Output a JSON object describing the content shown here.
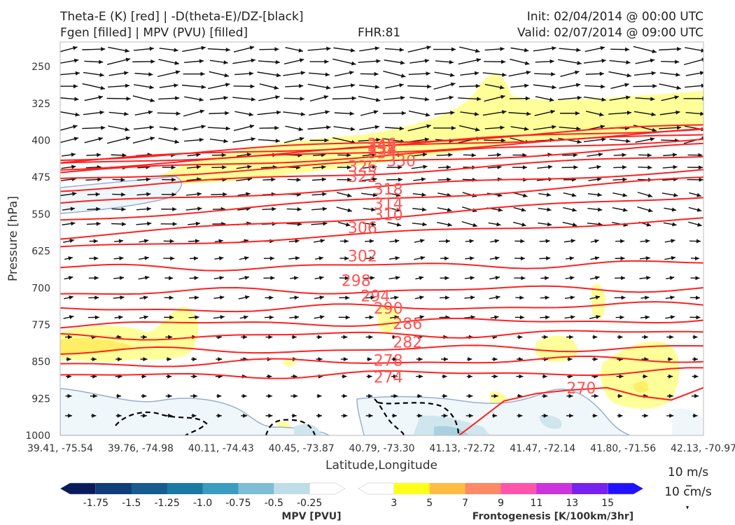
{
  "header": {
    "title_left_1": "Theta-E (K) [red] | -D(theta-E)/DZ-[black]",
    "title_left_2": "Fgen [filled] | MPV (PVU) [filled]",
    "fhr": "FHR:81",
    "init": "Init: 02/04/2014 @ 00:00 UTC",
    "valid": "Valid: 02/07/2014 @ 09:00 UTC"
  },
  "chart_data": {
    "type": "cross-section",
    "xlabel": "Latitude,Longitude",
    "ylabel": "Pressure [hPa]",
    "ylim": [
      1000,
      200
    ],
    "y_ticks": [
      "250",
      "325",
      "400",
      "475",
      "550",
      "625",
      "700",
      "775",
      "850",
      "925",
      "1000"
    ],
    "x_ticks": [
      "39.41, -75.54",
      "39.76, -74.98",
      "40.11, -74.43",
      "40.45, -73.87",
      "40.79, -73.30",
      "41.13, -72.72",
      "41.47, -72.14",
      "41.80, -71.56",
      "42.13, -70.97"
    ],
    "theta_e_contours": {
      "color": "#ff2020",
      "levels": [
        270,
        274,
        278,
        282,
        286,
        290,
        294,
        298,
        302,
        306,
        310,
        314,
        318,
        322,
        326,
        330,
        334,
        338,
        342,
        346
      ],
      "labels": [
        {
          "text": "270",
          "x": 0.81,
          "p": 903
        },
        {
          "text": "274",
          "x": 0.51,
          "p": 881
        },
        {
          "text": "278",
          "x": 0.51,
          "p": 847
        },
        {
          "text": "282",
          "x": 0.54,
          "p": 810
        },
        {
          "text": "286",
          "x": 0.54,
          "p": 772
        },
        {
          "text": "290",
          "x": 0.51,
          "p": 741
        },
        {
          "text": "294",
          "x": 0.49,
          "p": 716
        },
        {
          "text": "298",
          "x": 0.46,
          "p": 685
        },
        {
          "text": "302",
          "x": 0.47,
          "p": 635
        },
        {
          "text": "306",
          "x": 0.47,
          "p": 577
        },
        {
          "text": "310",
          "x": 0.51,
          "p": 551
        },
        {
          "text": "314",
          "x": 0.51,
          "p": 528
        },
        {
          "text": "318",
          "x": 0.51,
          "p": 499
        },
        {
          "text": "322",
          "x": 0.47,
          "p": 473
        },
        {
          "text": "326",
          "x": 0.47,
          "p": 453
        },
        {
          "text": "330",
          "x": 0.53,
          "p": 441
        },
        {
          "text": "334",
          "x": 0.5,
          "p": 425
        },
        {
          "text": "338",
          "x": 0.5,
          "p": 417
        },
        {
          "text": "342",
          "x": 0.5,
          "p": 411
        },
        {
          "text": "346",
          "x": 0.5,
          "p": 407
        }
      ]
    },
    "mpv_colorbar": {
      "label": "MPV [PVU]",
      "tick_labels": [
        "-1.75",
        "-1.5",
        "-1.25",
        "-1.0",
        "-0.75",
        "-0.5",
        "-0.25"
      ],
      "colors": [
        "#0a1a5c",
        "#0f3d7a",
        "#165c8f",
        "#1a7aa3",
        "#3a9cbf",
        "#7dbdd6",
        "#bfdde8",
        "#ffffff"
      ]
    },
    "fgen_colorbar": {
      "label": "Frontogenesis [K/100km/3hr]",
      "tick_labels": [
        "3",
        "5",
        "7",
        "9",
        "11",
        "13",
        "15"
      ],
      "colors": [
        "#ffffff",
        "#ffff1a",
        "#ffbb44",
        "#ff8866",
        "#ff55aa",
        "#cc33dd",
        "#7722ee",
        "#2211ff"
      ]
    },
    "vector_reference": {
      "horizontal": "10 m/s",
      "vertical": "10 cm/s"
    }
  }
}
